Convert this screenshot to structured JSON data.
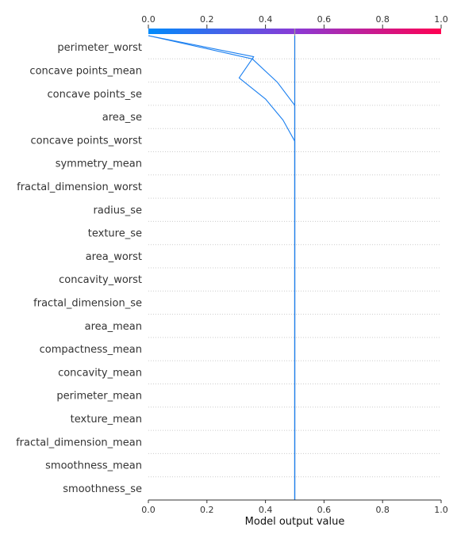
{
  "chart_data": {
    "type": "line",
    "subtype": "shap-decision-plot",
    "xlabel": "Model output value",
    "xlim": [
      0.0,
      1.0
    ],
    "x_ticks": [
      "0.0",
      "0.2",
      "0.4",
      "0.6",
      "0.8",
      "1.0"
    ],
    "base_value": 0.5,
    "colorbar": {
      "from": "#008bfb",
      "mid": "#8a3ad6",
      "to": "#ff0052"
    },
    "line_color": "#1a7ff0",
    "grid": "dotted-horizontal",
    "features": [
      "perimeter_worst",
      "concave points_mean",
      "concave points_se",
      "area_se",
      "concave points_worst",
      "symmetry_mean",
      "fractal_dimension_worst",
      "radius_se",
      "texture_se",
      "area_worst",
      "concavity_worst",
      "fractal_dimension_se",
      "area_mean",
      "compactness_mean",
      "concavity_mean",
      "perimeter_mean",
      "texture_mean",
      "fractal_dimension_mean",
      "smoothness_mean",
      "smoothness_se"
    ],
    "series": [
      {
        "values": [
          0.5,
          0.5,
          0.5,
          0.5,
          0.5,
          0.5,
          0.5,
          0.5,
          0.5,
          0.5,
          0.5,
          0.5,
          0.5,
          0.5,
          0.5,
          0.5,
          0.5,
          0.5,
          0.44,
          0.355,
          0.0
        ]
      },
      {
        "values": [
          0.5,
          0.5,
          0.5,
          0.5,
          0.5,
          0.5,
          0.5,
          0.5,
          0.5,
          0.5,
          0.5,
          0.5,
          0.5,
          0.5,
          0.5,
          0.5,
          0.5,
          0.5,
          0.46,
          0.4,
          0.31,
          0.36,
          0.0
        ]
      },
      {
        "values": [
          0.5,
          0.5,
          0.5,
          0.5,
          0.5,
          0.5,
          0.5,
          0.5,
          0.5,
          0.5,
          0.5,
          0.5,
          0.5,
          0.5,
          0.5,
          0.5,
          0.5,
          0.5,
          0.5,
          0.5,
          0.5,
          0.5,
          0.5,
          0.5,
          0.5,
          0.5,
          0.5,
          0.5,
          0.5,
          0.5
        ]
      }
    ]
  }
}
